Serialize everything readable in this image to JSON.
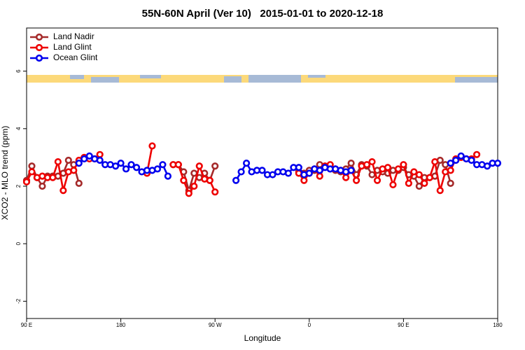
{
  "chart_data": {
    "type": "line",
    "title": "55N-60N April (Ver 10)   2015-01-01 to 2020-12-18",
    "xlabel": "Longitude",
    "ylabel": "XCO2 - MLO trend (ppm)",
    "xlim": [
      90,
      540
    ],
    "ylim": [
      -2.6,
      7.5
    ],
    "xticks": [
      {
        "value": 90,
        "label": "90 E"
      },
      {
        "value": 180,
        "label": "180"
      },
      {
        "value": 270,
        "label": "90 W"
      },
      {
        "value": 360,
        "label": "0"
      },
      {
        "value": 450,
        "label": "90 E"
      },
      {
        "value": 540,
        "label": "180"
      }
    ],
    "yticks": [
      -2,
      0,
      2,
      4,
      6
    ],
    "legend": "top-left",
    "series": [
      {
        "name": "Land Nadir",
        "color": "#a52a2a",
        "x": [
          90,
          95,
          100,
          105,
          110,
          115,
          120,
          125,
          130,
          135,
          140,
          180,
          230,
          235,
          240,
          245,
          250,
          255,
          260,
          265,
          270,
          320,
          350,
          355,
          360,
          365,
          370,
          375,
          380,
          385,
          390,
          395,
          400,
          405,
          410,
          415,
          420,
          425,
          430,
          435,
          440,
          445,
          450,
          455,
          460,
          465,
          470,
          475,
          480,
          485,
          490,
          495
        ],
        "values": [
          2.2,
          2.7,
          2.3,
          2.0,
          2.35,
          2.35,
          2.35,
          2.45,
          2.9,
          2.75,
          2.1,
          null,
          2.75,
          2.75,
          2.5,
          1.85,
          2.45,
          2.3,
          2.45,
          2.2,
          2.7,
          null,
          2.5,
          2.45,
          2.55,
          2.55,
          2.75,
          2.7,
          2.6,
          2.55,
          2.5,
          2.6,
          2.8,
          2.4,
          2.75,
          2.7,
          2.4,
          2.55,
          2.5,
          2.45,
          2.55,
          2.55,
          2.65,
          2.4,
          2.35,
          2.0,
          2.3,
          2.3,
          2.35,
          2.9,
          2.75,
          2.1
        ]
      },
      {
        "name": "Land Glint",
        "color": "#ee0000",
        "x": [
          90,
          95,
          100,
          105,
          110,
          115,
          120,
          125,
          130,
          135,
          140,
          145,
          150,
          155,
          160,
          200,
          205,
          210,
          220,
          230,
          235,
          240,
          245,
          250,
          255,
          260,
          265,
          270,
          320,
          350,
          355,
          360,
          365,
          370,
          375,
          380,
          385,
          390,
          395,
          400,
          405,
          410,
          415,
          420,
          425,
          430,
          435,
          440,
          445,
          450,
          455,
          460,
          465,
          470,
          475,
          480,
          485,
          490,
          495,
          500,
          505,
          510,
          515,
          520
        ],
        "values": [
          2.15,
          2.5,
          2.3,
          2.35,
          2.3,
          2.3,
          2.85,
          1.85,
          2.5,
          2.55,
          2.9,
          3.0,
          2.95,
          2.95,
          3.1,
          null,
          2.45,
          3.4,
          null,
          2.75,
          2.75,
          2.2,
          1.75,
          2.0,
          2.7,
          2.25,
          2.2,
          1.8,
          null,
          2.45,
          2.2,
          2.45,
          2.6,
          2.35,
          2.7,
          2.75,
          2.6,
          2.55,
          2.3,
          2.55,
          2.2,
          2.7,
          2.75,
          2.85,
          2.2,
          2.6,
          2.65,
          2.05,
          2.6,
          2.75,
          2.1,
          2.5,
          2.4,
          2.1,
          2.3,
          2.85,
          1.85,
          2.5,
          2.55,
          2.95,
          3.0,
          2.95,
          2.95,
          3.1
        ]
      },
      {
        "name": "Ocean Glint",
        "color": "#0000ee",
        "x": [
          140,
          145,
          150,
          155,
          160,
          165,
          170,
          175,
          180,
          185,
          190,
          195,
          200,
          205,
          210,
          215,
          220,
          225,
          257,
          290,
          295,
          300,
          305,
          310,
          315,
          320,
          325,
          330,
          335,
          340,
          345,
          350,
          355,
          360,
          365,
          370,
          375,
          380,
          385,
          390,
          395,
          400,
          450,
          495,
          500,
          505,
          510,
          515,
          520,
          525,
          530,
          535,
          540
        ],
        "values": [
          2.8,
          2.95,
          3.05,
          2.95,
          2.9,
          2.75,
          2.75,
          2.7,
          2.8,
          2.6,
          2.75,
          2.65,
          2.5,
          2.55,
          2.55,
          2.6,
          2.75,
          2.35,
          null,
          2.2,
          2.5,
          2.8,
          2.5,
          2.55,
          2.55,
          2.4,
          2.4,
          2.5,
          2.5,
          2.45,
          2.65,
          2.65,
          2.4,
          2.45,
          2.6,
          2.55,
          2.65,
          2.6,
          2.6,
          2.55,
          2.5,
          2.55,
          null,
          2.8,
          2.9,
          3.05,
          2.95,
          2.9,
          2.75,
          2.75,
          2.7,
          2.8,
          2.8
        ]
      }
    ]
  }
}
